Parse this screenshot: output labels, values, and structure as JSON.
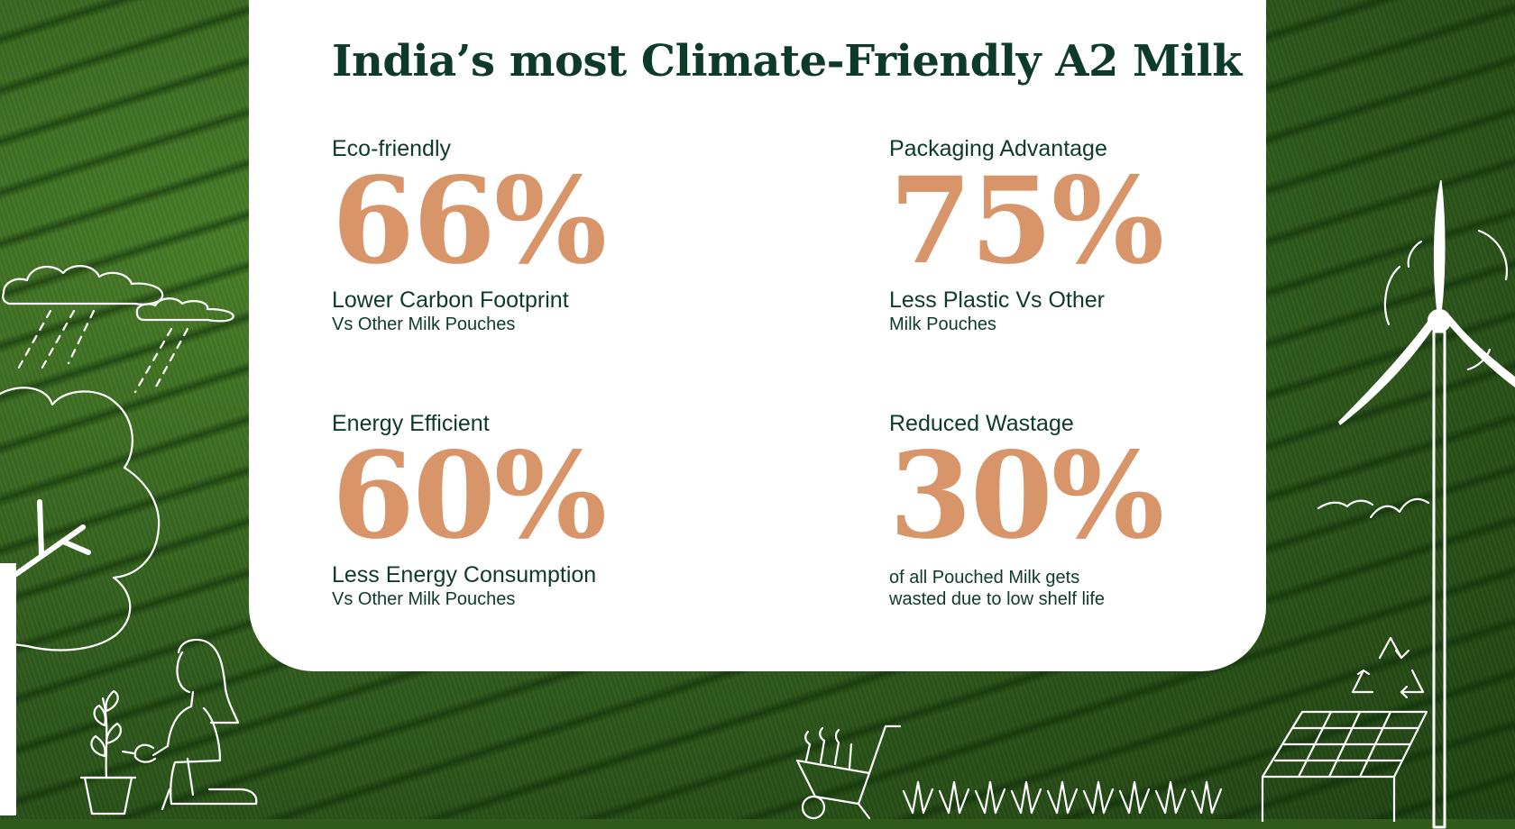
{
  "title": "India’s most Climate-Friendly A2 Milk",
  "stats": [
    {
      "label": "Eco-friendly",
      "value": "66%",
      "main": "Lower Carbon Footprint",
      "sub": "Vs Other Milk Pouches"
    },
    {
      "label": "Packaging Advantage",
      "value": "75%",
      "main": "Less Plastic Vs Other",
      "sub": "Milk Pouches"
    },
    {
      "label": "Energy Efficient",
      "value": "60%",
      "main": "Less Energy Consumption",
      "sub": "Vs Other Milk Pouches"
    },
    {
      "label": "Reduced Wastage",
      "value": "30%",
      "main": "",
      "sub_lines": [
        "of all Pouched Milk gets",
        "wasted due to low shelf life"
      ]
    }
  ],
  "colors": {
    "title": "#0e3a2a",
    "value": "#d8956a",
    "card": "#ffffff",
    "field": "#2f5a1c"
  },
  "icons": [
    "cloud-rain-icon",
    "tree-icon",
    "girl-watering-plant-icon",
    "potted-plant-icon",
    "wheelbarrow-icon",
    "grass-icon",
    "wind-turbine-icon",
    "birds-icon",
    "recycle-icon",
    "solar-panel-icon"
  ]
}
